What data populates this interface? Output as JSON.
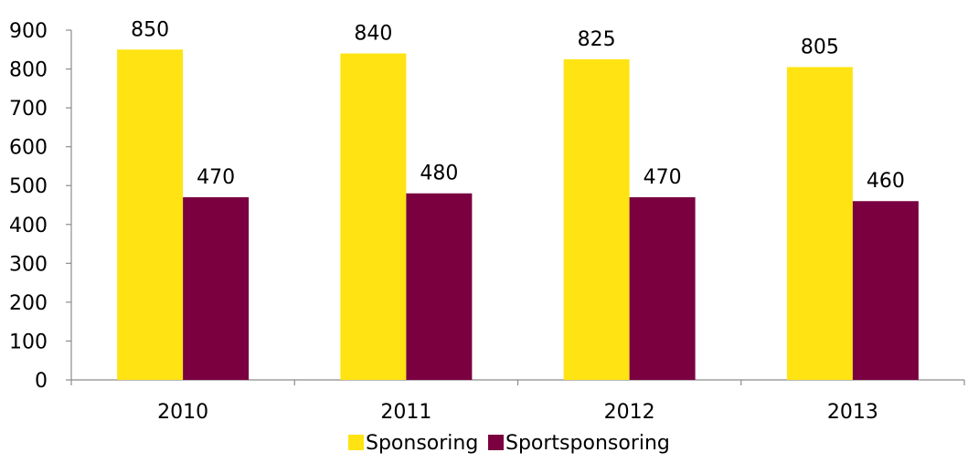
{
  "chart_data": {
    "type": "bar",
    "categories": [
      "2010",
      "2011",
      "2012",
      "2013"
    ],
    "series": [
      {
        "name": "Sponsoring",
        "values": [
          850,
          840,
          825,
          805
        ],
        "color": "#FFE312"
      },
      {
        "name": "Sportsponsoring",
        "values": [
          470,
          480,
          470,
          460
        ],
        "color": "#7A0040"
      }
    ],
    "ylim": [
      0,
      900
    ],
    "yticks": [
      0,
      100,
      200,
      300,
      400,
      500,
      600,
      700,
      800,
      900
    ],
    "grid": false,
    "legend": "bottom-center",
    "data_labels": true
  }
}
